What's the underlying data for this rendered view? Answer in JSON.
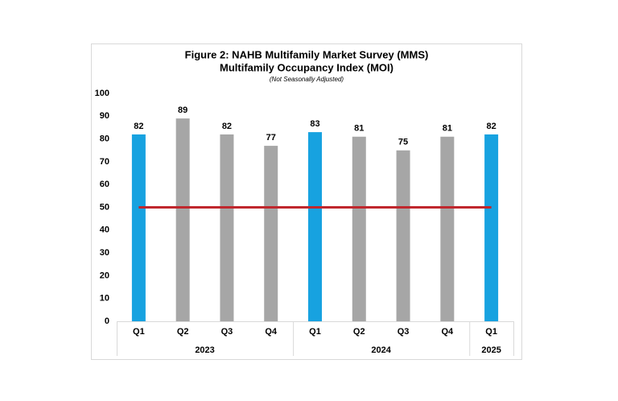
{
  "chart_data": {
    "type": "bar",
    "title": "Figure 2: NAHB Multifamily Market Survey (MMS)",
    "subtitle": "Multifamily Occupancy Index (MOI)",
    "note": "(Not Seasonally Adjusted)",
    "categories": [
      "Q1",
      "Q2",
      "Q3",
      "Q4",
      "Q1",
      "Q2",
      "Q3",
      "Q4",
      "Q1"
    ],
    "groups": [
      {
        "label": "2023",
        "count": 4
      },
      {
        "label": "2024",
        "count": 4
      },
      {
        "label": "2025",
        "count": 1
      }
    ],
    "values": [
      82,
      89,
      82,
      77,
      83,
      81,
      75,
      81,
      82
    ],
    "colors": [
      "#17a2e0",
      "#a6a6a6",
      "#a6a6a6",
      "#a6a6a6",
      "#17a2e0",
      "#a6a6a6",
      "#a6a6a6",
      "#a6a6a6",
      "#17a2e0"
    ],
    "reference_line": {
      "value": 50,
      "color": "#c0272d"
    },
    "ylim": [
      0,
      100
    ],
    "yticks": [
      0,
      10,
      20,
      30,
      40,
      50,
      60,
      70,
      80,
      90,
      100
    ],
    "grid": false
  }
}
